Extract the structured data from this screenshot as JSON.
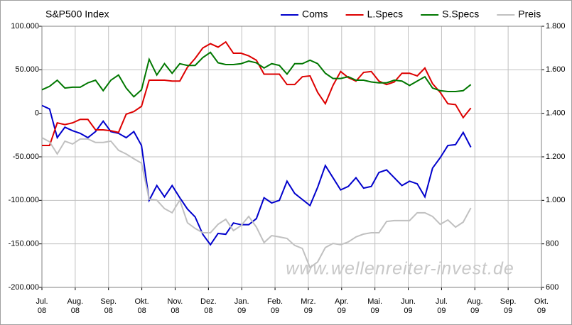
{
  "chart_data": {
    "type": "line",
    "title": "S&P500 Index",
    "watermark": "www.wellenreiter-invest.de",
    "legend": "top-right",
    "grid": true,
    "xlim": [
      0,
      15
    ],
    "xticks": [
      {
        "value": 0,
        "label": "Jul. 08"
      },
      {
        "value": 1,
        "label": "Aug. 08"
      },
      {
        "value": 2,
        "label": "Sep. 08"
      },
      {
        "value": 3,
        "label": "Okt. 08"
      },
      {
        "value": 4,
        "label": "Nov. 08"
      },
      {
        "value": 5,
        "label": "Dez. 08"
      },
      {
        "value": 6,
        "label": "Jan. 09"
      },
      {
        "value": 7,
        "label": "Feb. 09"
      },
      {
        "value": 8,
        "label": "Mrz. 09"
      },
      {
        "value": 9,
        "label": "Apr. 09"
      },
      {
        "value": 10,
        "label": "Mai. 09"
      },
      {
        "value": 11,
        "label": "Jun. 09"
      },
      {
        "value": 12,
        "label": "Jul. 09"
      },
      {
        "value": 13,
        "label": "Aug. 09"
      },
      {
        "value": 14,
        "label": "Sep. 09"
      },
      {
        "value": 15,
        "label": "Okt. 09"
      }
    ],
    "ylim": [
      -200000,
      100000
    ],
    "yticks": [
      {
        "value": -200000,
        "label": "-200.000"
      },
      {
        "value": -150000,
        "label": "-150.000"
      },
      {
        "value": -100000,
        "label": "-100.000"
      },
      {
        "value": -50000,
        "label": "-50.000"
      },
      0,
      {
        "value": 50000,
        "label": "50.000"
      },
      {
        "value": 100000,
        "label": "100.000"
      }
    ],
    "y2lim": [
      600,
      1800
    ],
    "y2ticks": [
      600,
      800,
      {
        "value": 1000,
        "label": "1.000"
      },
      {
        "value": 1200,
        "label": "1.200"
      },
      {
        "value": 1400,
        "label": "1.400"
      },
      {
        "value": 1600,
        "label": "1.600"
      },
      {
        "value": 1800,
        "label": "1.800"
      }
    ],
    "x": [
      0,
      0.23,
      0.46,
      0.69,
      0.92,
      1.15,
      1.38,
      1.61,
      1.84,
      2.07,
      2.3,
      2.53,
      2.76,
      2.99,
      3.22,
      3.45,
      3.68,
      3.91,
      4.14,
      4.37,
      4.6,
      4.83,
      5.06,
      5.29,
      5.52,
      5.75,
      5.98,
      6.21,
      6.44,
      6.67,
      6.9,
      7.13,
      7.36,
      7.59,
      7.82,
      8.05,
      8.28,
      8.51,
      8.74,
      8.97,
      9.2,
      9.43,
      9.66,
      9.89,
      10.12,
      10.35,
      10.58,
      10.81,
      11.04,
      11.27,
      11.5,
      11.73,
      11.96,
      12.19,
      12.42,
      12.65,
      12.88
    ],
    "series": [
      {
        "name": "Coms",
        "color": "#0000cc",
        "values": [
          9000,
          5000,
          -28000,
          -16000,
          -20000,
          -23000,
          -28000,
          -21000,
          -9000,
          -21000,
          -23000,
          -28000,
          -21000,
          -37000,
          -100000,
          -83000,
          -96000,
          -83000,
          -97000,
          -110000,
          -119000,
          -139000,
          -151000,
          -138000,
          -139000,
          -126000,
          -128000,
          -128000,
          -121000,
          -97000,
          -103000,
          -100000,
          -78000,
          -92000,
          -99000,
          -106000,
          -85000,
          -60000,
          -74000,
          -88000,
          -84000,
          -74000,
          -86000,
          -84000,
          -68000,
          -65000,
          -74000,
          -83000,
          -78000,
          -81000,
          -96000,
          -63000,
          -51000,
          -37000,
          -36000,
          -22000,
          -39000
        ]
      },
      {
        "name": "L.Specs",
        "color": "#dd0000",
        "values": [
          -37000,
          -37000,
          -11000,
          -13000,
          -11000,
          -7000,
          -7000,
          -19000,
          -19000,
          -20000,
          -22000,
          -1000,
          2000,
          8000,
          38000,
          38000,
          38000,
          37000,
          37000,
          53000,
          63000,
          75000,
          80000,
          76000,
          82000,
          69000,
          69000,
          66000,
          61000,
          45000,
          45000,
          45000,
          33000,
          33000,
          42000,
          43000,
          24000,
          11000,
          32000,
          48000,
          41000,
          37000,
          47000,
          48000,
          37000,
          33000,
          36000,
          46000,
          46000,
          43000,
          52000,
          34000,
          24000,
          11000,
          10000,
          -5000,
          6000
        ]
      },
      {
        "name": "S.Specs",
        "color": "#007700",
        "values": [
          27000,
          31000,
          38000,
          29000,
          30000,
          30000,
          35000,
          38000,
          26000,
          38000,
          44000,
          29000,
          19000,
          27000,
          62000,
          44000,
          57000,
          46000,
          57000,
          55000,
          55000,
          64000,
          70000,
          58000,
          56000,
          56000,
          57000,
          60000,
          58000,
          52000,
          57000,
          55000,
          45000,
          57000,
          57000,
          61000,
          57000,
          46000,
          40000,
          40000,
          42000,
          38000,
          38000,
          36000,
          35000,
          35000,
          38000,
          37000,
          32000,
          37000,
          42000,
          29000,
          26000,
          25000,
          25000,
          26000,
          33000
        ]
      },
      {
        "name": "Preis",
        "color": "#c0c0c0",
        "axis": "y2",
        "values": [
          1288,
          1269,
          1213,
          1272,
          1259,
          1282,
          1282,
          1266,
          1266,
          1272,
          1230,
          1213,
          1191,
          1171,
          1005,
          1001,
          962,
          943,
          1001,
          897,
          871,
          851,
          851,
          890,
          913,
          861,
          884,
          926,
          877,
          806,
          838,
          832,
          825,
          793,
          779,
          691,
          717,
          783,
          802,
          796,
          809,
          832,
          845,
          851,
          851,
          903,
          907,
          907,
          907,
          943,
          943,
          926,
          890,
          910,
          877,
          900,
          965
        ]
      }
    ]
  }
}
